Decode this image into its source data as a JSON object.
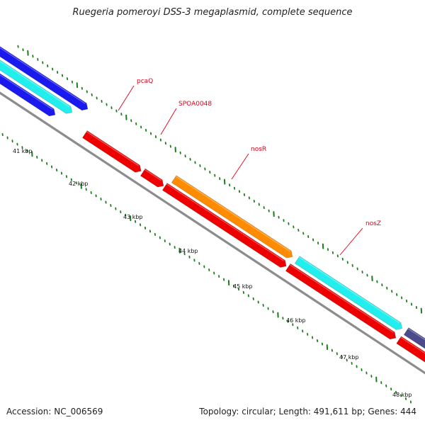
{
  "title": "Ruegeria pomeroyi DSS-3 megaplasmid, complete sequence",
  "footer": {
    "accession": "Accession: NC_006569",
    "topology": "Topology: circular; Length: 491,611 bp; Genes: 444"
  },
  "colors": {
    "backbone": "#8c8c8c",
    "tick": "#1f7a1f",
    "label": "#e0001a",
    "red": "#ee0000",
    "blue": "#1a1aee",
    "cyan": "#22eeee",
    "orange": "#ff8c00",
    "navy": "#4a4a8c"
  },
  "scale_labels": [
    "41 kbp",
    "42 kbp",
    "43 kbp",
    "44 kbp",
    "45 kbp",
    "46 kbp",
    "47 kbp",
    "48 kbp"
  ],
  "gene_labels": [
    "pcaQ",
    "SPOA0048",
    "nosR",
    "nosZ"
  ],
  "features": [
    {
      "color_key": "blue",
      "track": "outer-2"
    },
    {
      "color_key": "cyan",
      "track": "outer-1"
    },
    {
      "color_key": "blue",
      "track": "outer-0"
    },
    {
      "color_key": "red",
      "track": "outer-0",
      "gene": "pcaQ"
    },
    {
      "color_key": "red",
      "track": "outer-0",
      "gene": "SPOA0048"
    },
    {
      "color_key": "orange",
      "track": "outer-1",
      "gene": "nosR"
    },
    {
      "color_key": "red",
      "track": "outer-0",
      "gene": "nosR"
    },
    {
      "color_key": "cyan",
      "track": "outer-1",
      "gene": "nosZ"
    },
    {
      "color_key": "red",
      "track": "outer-0",
      "gene": "nosZ"
    },
    {
      "color_key": "navy",
      "track": "outer-1"
    },
    {
      "color_key": "red",
      "track": "outer-0"
    }
  ]
}
